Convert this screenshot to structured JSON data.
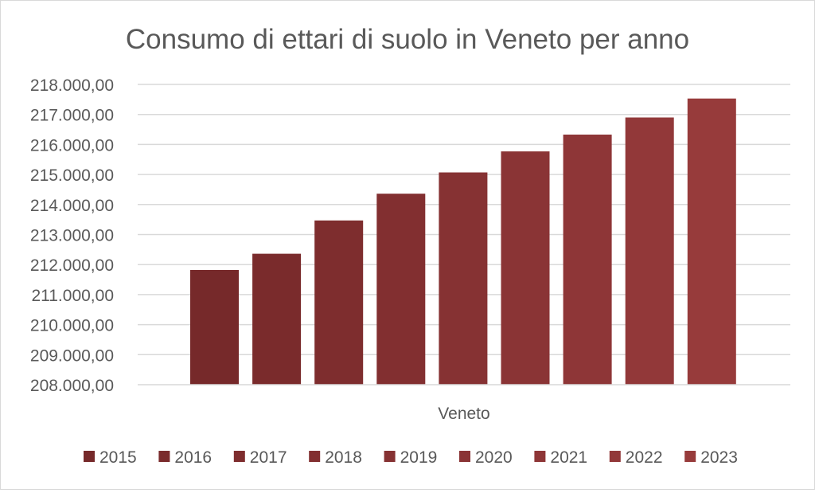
{
  "chart_data": {
    "type": "bar",
    "title": "Consumo di ettari di suolo in Veneto per anno",
    "xlabel": "Veneto",
    "ylabel": "",
    "categories": [
      "Veneto"
    ],
    "series": [
      {
        "name": "2015",
        "values": [
          211820
        ],
        "color": "#76292a"
      },
      {
        "name": "2016",
        "values": [
          212360
        ],
        "color": "#7a2b2c"
      },
      {
        "name": "2017",
        "values": [
          213470
        ],
        "color": "#7e2d2e"
      },
      {
        "name": "2018",
        "values": [
          214360
        ],
        "color": "#822f30"
      },
      {
        "name": "2019",
        "values": [
          215070
        ],
        "color": "#863233"
      },
      {
        "name": "2020",
        "values": [
          215770
        ],
        "color": "#8a3435"
      },
      {
        "name": "2021",
        "values": [
          216330
        ],
        "color": "#8e3637"
      },
      {
        "name": "2022",
        "values": [
          216900
        ],
        "color": "#923839"
      },
      {
        "name": "2023",
        "values": [
          217530
        ],
        "color": "#973b3b"
      }
    ],
    "ylim": [
      208000,
      218000
    ],
    "yticks": [
      "208.000,00",
      "209.000,00",
      "210.000,00",
      "211.000,00",
      "212.000,00",
      "213.000,00",
      "214.000,00",
      "215.000,00",
      "216.000,00",
      "217.000,00",
      "218.000,00"
    ],
    "grid": true,
    "legend_position": "bottom"
  }
}
